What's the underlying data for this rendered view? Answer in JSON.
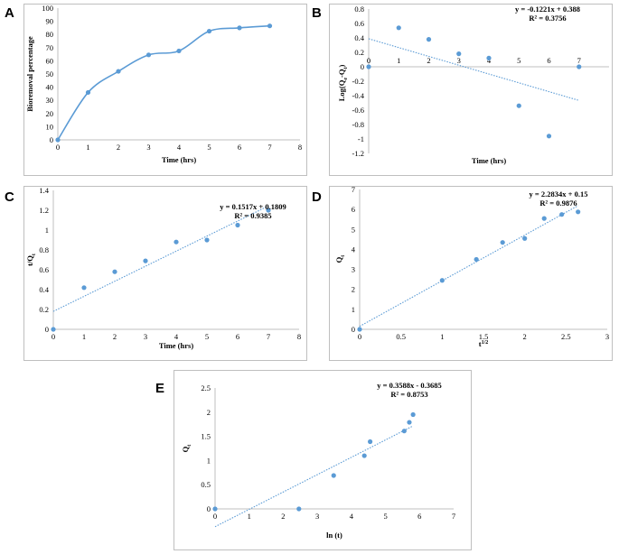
{
  "chart_data": [
    {
      "panel": "A",
      "type": "line",
      "smooth": true,
      "x": [
        0,
        1,
        2,
        3,
        4,
        5,
        6,
        7
      ],
      "y": [
        0,
        36,
        52,
        64.5,
        67.5,
        82.5,
        85,
        86.5
      ],
      "xlim": [
        0,
        8
      ],
      "ylim": [
        0,
        100
      ],
      "xticks": [
        0,
        1,
        2,
        3,
        4,
        5,
        6,
        7,
        8
      ],
      "yticks": [
        0,
        10,
        20,
        30,
        40,
        50,
        60,
        70,
        80,
        90,
        100
      ],
      "xticklabels": [
        "0",
        "1",
        "2",
        "3",
        "4",
        "5",
        "6",
        "7",
        "8"
      ],
      "yticklabels": [
        "0",
        "10",
        "20",
        "30",
        "40",
        "50",
        "60",
        "70",
        "80",
        "90",
        "100"
      ],
      "xlabel": "Time (hrs)",
      "ylabel": "Bioremoval percentage",
      "equation": "",
      "r2": ""
    },
    {
      "panel": "B",
      "type": "scatter",
      "x": [
        0,
        1,
        2,
        3,
        4,
        5,
        6,
        7
      ],
      "y": [
        0,
        0.54,
        0.38,
        0.18,
        0.12,
        -0.54,
        -0.96,
        0
      ],
      "xlim": [
        0,
        8
      ],
      "ylim": [
        -1.2,
        0.8
      ],
      "xticks": [
        0,
        1,
        2,
        3,
        4,
        5,
        6,
        7
      ],
      "yticks": [
        -1.2,
        -1,
        -0.8,
        -0.6,
        -0.4,
        -0.2,
        0,
        0.2,
        0.4,
        0.6,
        0.8
      ],
      "xticklabels": [
        "0",
        "1",
        "2",
        "3",
        "4",
        "5",
        "6",
        "7"
      ],
      "yticklabels": [
        "-1.2",
        "-1",
        "-0.8",
        "-0.6",
        "-0.4",
        "-0.2",
        "0",
        "0.2",
        "0.4",
        "0.6",
        "0.8"
      ],
      "xlabel": "Time (hrs)",
      "ylabel": "Log(Qe-Qt)",
      "trend": {
        "slope": -0.1221,
        "intercept": 0.388,
        "x0": 0,
        "x1": 7
      },
      "equation": "y = -0.1221x + 0.388",
      "r2": "R² = 0.3756"
    },
    {
      "panel": "C",
      "type": "scatter",
      "x": [
        0,
        1,
        2,
        3,
        4,
        5,
        6,
        7
      ],
      "y": [
        0,
        0.42,
        0.58,
        0.69,
        0.88,
        0.9,
        1.05,
        1.2
      ],
      "xlim": [
        0,
        8
      ],
      "ylim": [
        0,
        1.4
      ],
      "xticks": [
        0,
        1,
        2,
        3,
        4,
        5,
        6,
        7,
        8
      ],
      "yticks": [
        0,
        0.2,
        0.4,
        0.6,
        0.8,
        1,
        1.2,
        1.4
      ],
      "xticklabels": [
        "0",
        "1",
        "2",
        "3",
        "4",
        "5",
        "6",
        "7",
        "8"
      ],
      "yticklabels": [
        "0",
        "0.2",
        "0.4",
        "0.6",
        "0.8",
        "1",
        "1.2",
        "1.4"
      ],
      "xlabel": "Time (hrs)",
      "ylabel": "t/Qt",
      "trend": {
        "slope": 0.1517,
        "intercept": 0.1809,
        "x0": 0,
        "x1": 7
      },
      "equation": "y = 0.1517x + 0.1809",
      "r2": "R² = 0.9385"
    },
    {
      "panel": "D",
      "type": "scatter",
      "x": [
        0,
        1,
        1.414,
        1.732,
        2,
        2.236,
        2.449,
        2.646
      ],
      "y": [
        0,
        2.45,
        3.5,
        4.35,
        4.55,
        5.55,
        5.75,
        5.88
      ],
      "xlim": [
        0,
        3
      ],
      "ylim": [
        0,
        7
      ],
      "xticks": [
        0,
        0.5,
        1,
        1.5,
        2,
        2.5,
        3
      ],
      "yticks": [
        0,
        1,
        2,
        3,
        4,
        5,
        6,
        7
      ],
      "xticklabels": [
        "0",
        "0.5",
        "1",
        "1.5",
        "2",
        "2.5",
        "3"
      ],
      "yticklabels": [
        "0",
        "1",
        "2",
        "3",
        "4",
        "5",
        "6",
        "7"
      ],
      "xlabel": "t1/2",
      "ylabel": "Qt",
      "trend": {
        "slope": 2.2834,
        "intercept": 0.15,
        "x0": 0,
        "x1": 2.646
      },
      "equation": "y = 2.2834x + 0.15",
      "r2": "R² = 0.9876"
    },
    {
      "panel": "E",
      "type": "scatter",
      "x": [
        0,
        2.46,
        3.48,
        4.38,
        4.55,
        5.55,
        5.7,
        5.81
      ],
      "y": [
        0,
        0,
        0.69,
        1.1,
        1.39,
        1.61,
        1.79,
        1.95
      ],
      "xlim": [
        0,
        7
      ],
      "ylim": [
        0,
        2.5
      ],
      "xticks": [
        0,
        1,
        2,
        3,
        4,
        5,
        6,
        7
      ],
      "yticks": [
        0,
        0.5,
        1,
        1.5,
        2,
        2.5
      ],
      "xticklabels": [
        "0",
        "1",
        "2",
        "3",
        "4",
        "5",
        "6",
        "7"
      ],
      "yticklabels": [
        "0",
        "0.5",
        "1",
        "1.5",
        "2",
        "2.5"
      ],
      "xlabel": "ln (t)",
      "ylabel": "Qt",
      "trend": {
        "slope": 0.3588,
        "intercept": -0.3685,
        "x0": 0,
        "x1": 5.81
      },
      "equation": "y = 0.3588x - 0.3685",
      "r2": "R² = 0.8753"
    }
  ],
  "panel_labels": [
    "A",
    "B",
    "C",
    "D",
    "E"
  ]
}
